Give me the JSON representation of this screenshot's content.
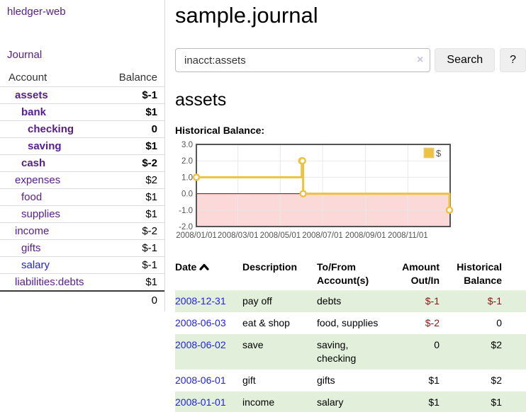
{
  "sidebar": {
    "brand": "hledger-web",
    "nav": {
      "journal": "Journal"
    },
    "accounts_table": {
      "headers": {
        "account": "Account",
        "balance": "Balance"
      },
      "rows": [
        {
          "name": "assets",
          "balance": "$-1",
          "level": 1,
          "in_view": true,
          "balance_tone": "neg-strong",
          "link_color": "purple"
        },
        {
          "name": "bank",
          "balance": "$1",
          "level": 2,
          "in_view": true,
          "balance_tone": "pos",
          "link_color": "purple"
        },
        {
          "name": "checking",
          "balance": "0",
          "level": 3,
          "in_view": true,
          "balance_tone": "pos",
          "link_color": "purple"
        },
        {
          "name": "saving",
          "balance": "$1",
          "level": 3,
          "in_view": true,
          "balance_tone": "pos",
          "link_color": "purple"
        },
        {
          "name": "cash",
          "balance": "$-2",
          "level": 2,
          "in_view": true,
          "balance_tone": "neg-strong",
          "link_color": "purple"
        },
        {
          "name": "expenses",
          "balance": "$2",
          "level": 1,
          "in_view": false,
          "balance_tone": "pos",
          "link_color": "purple"
        },
        {
          "name": "food",
          "balance": "$1",
          "level": 2,
          "in_view": false,
          "balance_tone": "pos",
          "link_color": "purple"
        },
        {
          "name": "supplies",
          "balance": "$1",
          "level": 2,
          "in_view": false,
          "balance_tone": "pos",
          "link_color": "purple"
        },
        {
          "name": "income",
          "balance": "$-2",
          "level": 1,
          "in_view": false,
          "balance_tone": "neg-soft",
          "link_color": "purple"
        },
        {
          "name": "gifts",
          "balance": "$-1",
          "level": 2,
          "in_view": false,
          "balance_tone": "neg-soft",
          "link_color": "purple"
        },
        {
          "name": "salary",
          "balance": "$-1",
          "level": 2,
          "in_view": false,
          "balance_tone": "neg-soft",
          "link_color": "blue"
        },
        {
          "name": "liabilities:debts",
          "balance": "$1",
          "level": 1,
          "in_view": false,
          "balance_tone": "pos",
          "link_color": "purple"
        }
      ],
      "total": "0"
    }
  },
  "header": {
    "title": "sample.journal"
  },
  "search": {
    "value": "inacct:assets",
    "clear_icon": "×",
    "search_label": "Search",
    "help_label": "?"
  },
  "account_page": {
    "heading": "assets"
  },
  "chart_data": {
    "type": "line",
    "step": true,
    "title": "Historical Balance:",
    "series": [
      {
        "name": "$",
        "color": "#edc240",
        "points": [
          [
            "2008-01-01",
            1
          ],
          [
            "2008-06-01",
            2
          ],
          [
            "2008-06-02",
            2
          ],
          [
            "2008-06-03",
            0
          ],
          [
            "2008-12-31",
            -1
          ]
        ]
      }
    ],
    "x_range": [
      "2008-01-01",
      "2009-01-01"
    ],
    "ylim": [
      -2,
      3
    ],
    "y_ticks": [
      "3.0",
      "2.0",
      "1.0",
      "0.0",
      "-1.0",
      "-2.0"
    ],
    "x_ticks": [
      "2008/01/01",
      "2008/03/01",
      "2008/05/01",
      "2008/07/01",
      "2008/09/01",
      "2008/11/01"
    ],
    "grid": true,
    "legend": {
      "label": "$",
      "position": "top-right"
    },
    "negative_region_color": "#fbd9d9",
    "zero_line_color": "#8b0000",
    "grid_color": "#e8e8e8",
    "border_color": "#545454",
    "tick_label_color": "#545454"
  },
  "register": {
    "headers": {
      "date": "Date",
      "description": "Description",
      "account": "To/From\nAccount(s)",
      "amount": "Amount\nOut/In",
      "balance": "Historical\nBalance"
    },
    "sort": {
      "column": "date",
      "direction": "ascending",
      "icon": "caret-up-icon"
    },
    "rows": [
      {
        "date": "2008-12-31",
        "description": "pay off",
        "accounts": "debts",
        "amount": "$-1",
        "balance": "$-1"
      },
      {
        "date": "2008-06-03",
        "description": "eat & shop",
        "accounts": "food, supplies",
        "amount": "$-2",
        "balance": "0"
      },
      {
        "date": "2008-06-02",
        "description": "save",
        "accounts": "saving, checking",
        "amount": "0",
        "balance": "$2"
      },
      {
        "date": "2008-06-01",
        "description": "gift",
        "accounts": "gifts",
        "amount": "$1",
        "balance": "$2"
      },
      {
        "date": "2008-01-01",
        "description": "income",
        "accounts": "salary",
        "amount": "$1",
        "balance": "$1"
      }
    ]
  },
  "colors": {
    "link_purple": "#571c8d",
    "link_blue": "#2222e0",
    "negative_strong": "#8b1616",
    "negative_soft": "#b36a6a",
    "row_stripe_green": "#e2efdb",
    "series_gold": "#edc240",
    "negative_region_pink": "#fbd9d9",
    "zero_line_red": "#8b0000"
  }
}
